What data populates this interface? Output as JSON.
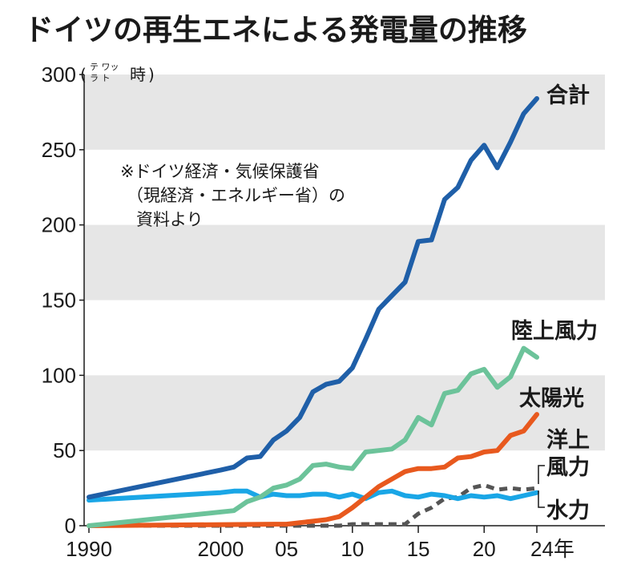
{
  "title": "ドイツの再生エネによる発電量の推移",
  "unit": {
    "main": "時",
    "ruby_top": "テ ワッ",
    "ruby_bottom": "ラ ト",
    "open": "(",
    "close": ")"
  },
  "note": {
    "line1": "※ドイツ経済・気候保護省",
    "line2": "（現経済・エネルギー省）の",
    "line3": "資料より"
  },
  "chart_data": {
    "type": "line",
    "title": "ドイツの再生エネによる発電量の推移",
    "ylabel": "テラワット時",
    "xlim": [
      1990,
      2024
    ],
    "ylim": [
      0,
      300
    ],
    "y_ticks": [
      0,
      50,
      100,
      150,
      200,
      250,
      300
    ],
    "y_tick_labels": [
      "0",
      "50",
      "100",
      "150",
      "200",
      "250",
      "300"
    ],
    "x_ticks": [
      1990,
      2000,
      2005,
      2010,
      2015,
      2020,
      2024
    ],
    "x_tick_labels": [
      "1990",
      "2000",
      "05",
      "10",
      "15",
      "20",
      "24年"
    ],
    "grid": "alternating horizontal bands",
    "series": [
      {
        "name": "合計",
        "color": "#1f5fa8",
        "style": "solid",
        "points": [
          [
            1990,
            19
          ],
          [
            2000,
            37
          ],
          [
            2001,
            39
          ],
          [
            2002,
            45
          ],
          [
            2003,
            46
          ],
          [
            2004,
            57
          ],
          [
            2005,
            63
          ],
          [
            2006,
            72
          ],
          [
            2007,
            89
          ],
          [
            2008,
            94
          ],
          [
            2009,
            96
          ],
          [
            2010,
            105
          ],
          [
            2011,
            124
          ],
          [
            2012,
            144
          ],
          [
            2013,
            153
          ],
          [
            2014,
            162
          ],
          [
            2015,
            189
          ],
          [
            2016,
            190
          ],
          [
            2017,
            217
          ],
          [
            2018,
            225
          ],
          [
            2019,
            243
          ],
          [
            2020,
            253
          ],
          [
            2021,
            238
          ],
          [
            2022,
            255
          ],
          [
            2023,
            274
          ],
          [
            2024,
            284
          ]
        ]
      },
      {
        "name": "陸上風力",
        "color": "#6cc39a",
        "style": "solid",
        "points": [
          [
            1990,
            0
          ],
          [
            2001,
            10
          ],
          [
            2002,
            16
          ],
          [
            2003,
            19
          ],
          [
            2004,
            25
          ],
          [
            2005,
            27
          ],
          [
            2006,
            31
          ],
          [
            2007,
            40
          ],
          [
            2008,
            41
          ],
          [
            2009,
            39
          ],
          [
            2010,
            38
          ],
          [
            2011,
            49
          ],
          [
            2012,
            50
          ],
          [
            2013,
            51
          ],
          [
            2014,
            57
          ],
          [
            2015,
            72
          ],
          [
            2016,
            67
          ],
          [
            2017,
            88
          ],
          [
            2018,
            90
          ],
          [
            2019,
            101
          ],
          [
            2020,
            104
          ],
          [
            2021,
            92
          ],
          [
            2022,
            99
          ],
          [
            2023,
            118
          ],
          [
            2024,
            112
          ]
        ]
      },
      {
        "name": "太陽光",
        "color": "#e8591e",
        "style": "solid",
        "points": [
          [
            1990,
            0
          ],
          [
            2004,
            1
          ],
          [
            2005,
            1
          ],
          [
            2006,
            2
          ],
          [
            2007,
            3
          ],
          [
            2008,
            4
          ],
          [
            2009,
            6
          ],
          [
            2010,
            12
          ],
          [
            2011,
            19
          ],
          [
            2012,
            26
          ],
          [
            2013,
            31
          ],
          [
            2014,
            36
          ],
          [
            2015,
            38
          ],
          [
            2016,
            38
          ],
          [
            2017,
            39
          ],
          [
            2018,
            45
          ],
          [
            2019,
            46
          ],
          [
            2020,
            49
          ],
          [
            2021,
            50
          ],
          [
            2022,
            60
          ],
          [
            2023,
            63
          ],
          [
            2024,
            74
          ]
        ]
      },
      {
        "name": "洋上風力",
        "color": "#555555",
        "style": "dashed",
        "points": [
          [
            1990,
            0
          ],
          [
            2009,
            0
          ],
          [
            2010,
            1
          ],
          [
            2011,
            1
          ],
          [
            2012,
            1
          ],
          [
            2013,
            1
          ],
          [
            2014,
            1
          ],
          [
            2015,
            8
          ],
          [
            2016,
            12
          ],
          [
            2017,
            18
          ],
          [
            2018,
            19
          ],
          [
            2019,
            25
          ],
          [
            2020,
            27
          ],
          [
            2021,
            24
          ],
          [
            2022,
            25
          ],
          [
            2023,
            24
          ],
          [
            2024,
            25
          ]
        ]
      },
      {
        "name": "水力",
        "color": "#1aa6e6",
        "style": "solid",
        "points": [
          [
            1990,
            17
          ],
          [
            2000,
            22
          ],
          [
            2001,
            23
          ],
          [
            2002,
            23
          ],
          [
            2003,
            19
          ],
          [
            2004,
            21
          ],
          [
            2005,
            20
          ],
          [
            2006,
            20
          ],
          [
            2007,
            21
          ],
          [
            2008,
            21
          ],
          [
            2009,
            19
          ],
          [
            2010,
            21
          ],
          [
            2011,
            18
          ],
          [
            2012,
            22
          ],
          [
            2013,
            23
          ],
          [
            2014,
            20
          ],
          [
            2015,
            19
          ],
          [
            2016,
            21
          ],
          [
            2017,
            20
          ],
          [
            2018,
            18
          ],
          [
            2019,
            20
          ],
          [
            2020,
            19
          ],
          [
            2021,
            20
          ],
          [
            2022,
            18
          ],
          [
            2023,
            20
          ],
          [
            2024,
            22
          ]
        ]
      }
    ],
    "labels": {
      "total": "合計",
      "onshore": "陸上風力",
      "solar": "太陽光",
      "offshore_1": "洋上",
      "offshore_2": "風力",
      "hydro": "水力"
    }
  }
}
